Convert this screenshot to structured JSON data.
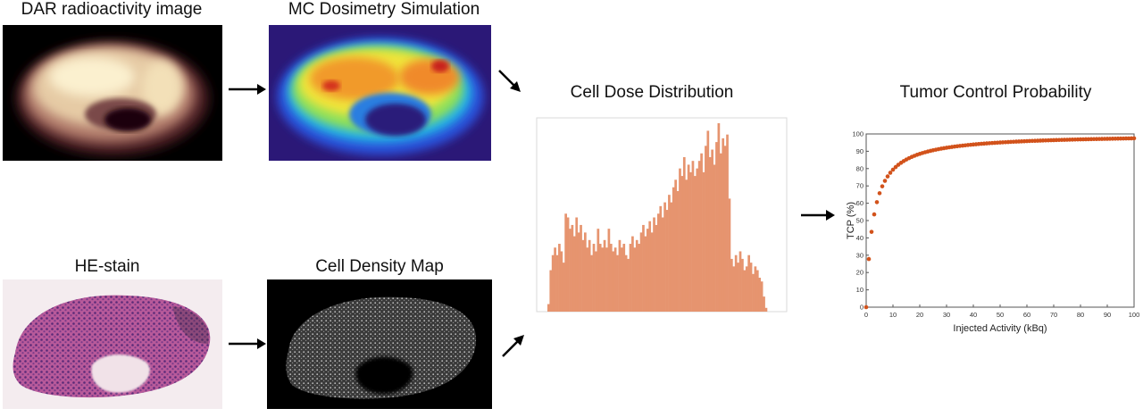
{
  "titles": {
    "dar": "DAR radioactivity image",
    "mc": "MC Dosimetry Simulation",
    "he": "HE-stain",
    "cell_density": "Cell Density Map",
    "histogram": "Cell Dose Distribution",
    "tcp": "Tumor Control Probability"
  },
  "colors": {
    "histogram_bar": "#e6946f",
    "tcp_marker": "#d2521b",
    "arrow": "#000000"
  },
  "chart_data": [
    {
      "type": "bar",
      "title": "Cell Dose Distribution",
      "xlabel": "",
      "ylabel": "",
      "ylim": [
        0,
        100
      ],
      "values": [
        4,
        22,
        30,
        34,
        30,
        36,
        32,
        26,
        52,
        50,
        44,
        46,
        40,
        50,
        42,
        46,
        38,
        42,
        34,
        38,
        30,
        36,
        32,
        44,
        36,
        34,
        38,
        34,
        44,
        36,
        32,
        34,
        30,
        38,
        34,
        36,
        30,
        28,
        36,
        40,
        34,
        38,
        36,
        42,
        46,
        40,
        44,
        48,
        42,
        50,
        46,
        52,
        56,
        50,
        58,
        54,
        62,
        58,
        66,
        70,
        64,
        76,
        72,
        82,
        70,
        78,
        74,
        80,
        72,
        76,
        80,
        84,
        74,
        88,
        96,
        82,
        86,
        78,
        90,
        100,
        84,
        92,
        88,
        94,
        60,
        28,
        24,
        30,
        26,
        32,
        28,
        22,
        24,
        30,
        26,
        20,
        24,
        22,
        18,
        16,
        8,
        2
      ]
    },
    {
      "type": "scatter",
      "title": "",
      "xlabel": "Injected Activity (kBq)",
      "ylabel": "TCP (%)",
      "xlim": [
        0,
        100
      ],
      "ylim": [
        0,
        100
      ],
      "x_ticks": [
        0,
        10,
        20,
        30,
        40,
        50,
        60,
        70,
        80,
        90,
        100
      ],
      "y_ticks": [
        0,
        10,
        20,
        30,
        40,
        50,
        60,
        70,
        80,
        90,
        100
      ],
      "model": {
        "tcp_max": 100,
        "half_activity_kbq": 2.6
      },
      "x_step_kbq": 1
    }
  ]
}
